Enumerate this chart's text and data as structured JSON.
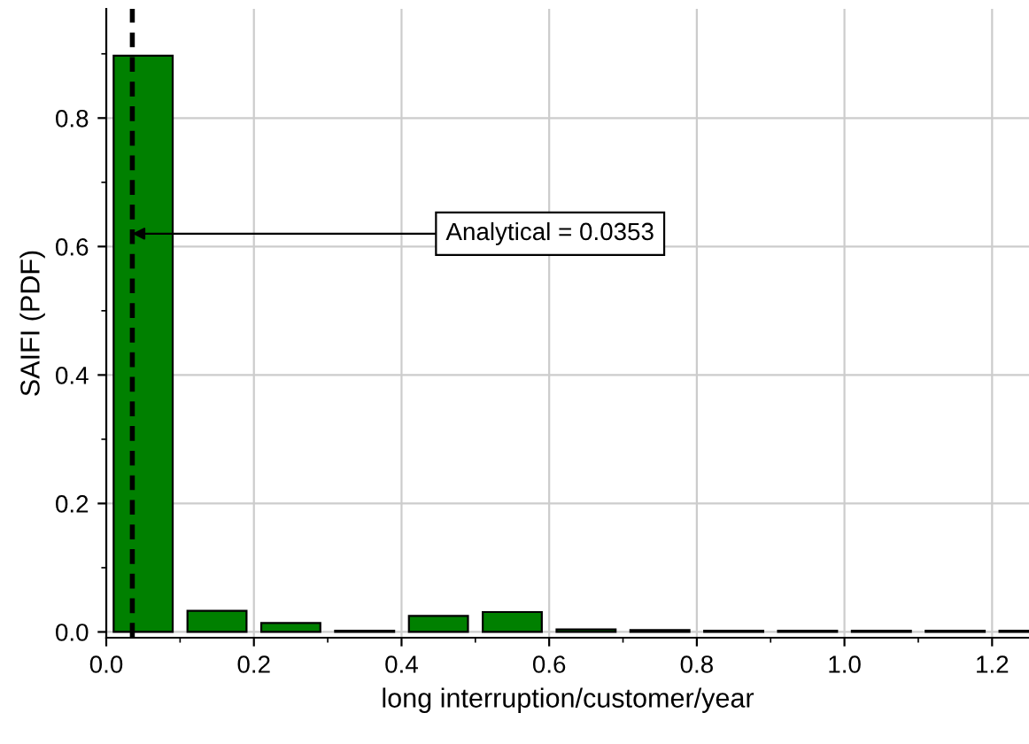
{
  "chart_data": {
    "type": "histogram",
    "xlabel": "long interruption/customer/year",
    "ylabel": "SAIFI (PDF)",
    "bins": [
      0.0,
      0.1,
      0.2,
      0.3,
      0.4,
      0.5,
      0.6,
      0.7,
      0.8,
      0.9,
      1.0,
      1.1,
      1.2,
      1.3
    ],
    "values": [
      0.897,
      0.033,
      0.014,
      0.002,
      0.025,
      0.031,
      0.004,
      0.003,
      0.002,
      0.002,
      0.002,
      0.002,
      0.002
    ],
    "color": "#008000",
    "xlim": [
      0,
      1.25
    ],
    "xticks": [
      {
        "value": 0,
        "label": "0.0"
      },
      {
        "value": 0.2,
        "label": "0.2"
      },
      {
        "value": 0.4,
        "label": "0.4"
      },
      {
        "value": 0.6,
        "label": "0.6"
      },
      {
        "value": 0.8,
        "label": "0.8"
      },
      {
        "value": 1.0,
        "label": "1.0"
      },
      {
        "value": 1.2,
        "label": "1.2"
      }
    ],
    "ylim": [
      -0.009,
      0.97
    ],
    "yticks": [
      {
        "value": 0,
        "label": "0.0"
      },
      0.2,
      0.4,
      0.6,
      0.8
    ],
    "ref_lines": [
      {
        "axis": "x",
        "value": 0.0353,
        "color": "#000000",
        "line_style": "dashed"
      }
    ],
    "annotations": [
      {
        "text": "Analytical = 0.0353",
        "x": 0.0353,
        "y": 0.62
      }
    ],
    "grid": true,
    "legend": false
  }
}
